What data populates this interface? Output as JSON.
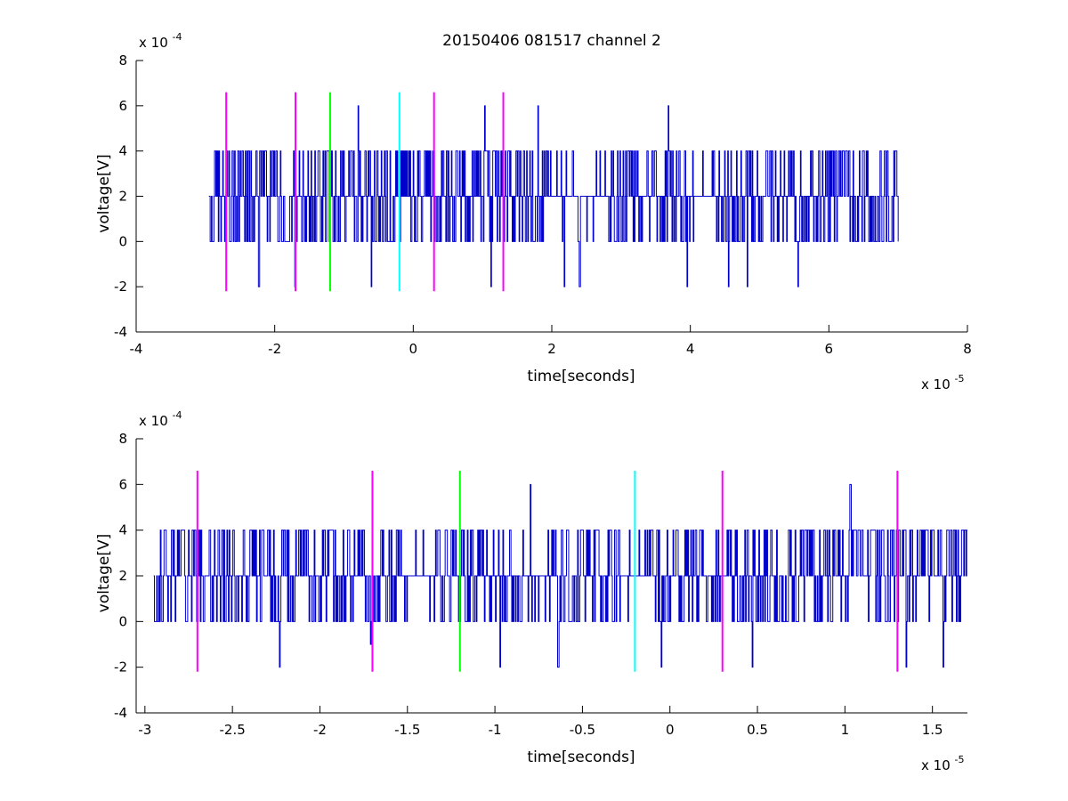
{
  "figure": {
    "title": "20150406 081517 channel 2"
  },
  "chart_data": [
    {
      "type": "line",
      "xlabel": "time[seconds]",
      "ylabel": "voltage[V]",
      "x_exponent_label": "x 10",
      "x_exponent": "-5",
      "y_exponent_label": "x 10",
      "y_exponent": "-4",
      "xlim": [
        -4,
        8
      ],
      "ylim": [
        -4,
        8
      ],
      "xticks": [
        -4,
        -2,
        0,
        2,
        4,
        6,
        8
      ],
      "xtick_labels": [
        "-4",
        "-2",
        "0",
        "2",
        "4",
        "6",
        "8"
      ],
      "yticks": [
        -4,
        -2,
        0,
        2,
        4,
        6,
        8
      ],
      "ytick_labels": [
        "-4",
        "-2",
        "0",
        "2",
        "4",
        "6",
        "8"
      ],
      "grid": false,
      "signal": {
        "color": "#0000cc",
        "x_start": -2.95,
        "x_end": 7.0,
        "levels": [
          -2,
          0,
          2,
          4,
          6
        ],
        "peaks": [
          {
            "x": -0.8,
            "y": 6
          },
          {
            "x": 1.03,
            "y": 6
          },
          {
            "x": 1.8,
            "y": 6
          },
          {
            "x": 3.68,
            "y": 6
          }
        ],
        "dips": [
          {
            "x": -2.23,
            "y": -2
          },
          {
            "x": -1.71,
            "y": -2
          },
          {
            "x": -0.61,
            "y": -2
          },
          {
            "x": 1.12,
            "y": -2
          },
          {
            "x": 2.18,
            "y": -2
          },
          {
            "x": 2.4,
            "y": -2
          },
          {
            "x": 3.95,
            "y": -2
          },
          {
            "x": 4.55,
            "y": -2
          },
          {
            "x": 4.82,
            "y": -2
          },
          {
            "x": 5.55,
            "y": -2
          }
        ],
        "quiet_intervals": [
          [
            2.0,
            2.8
          ],
          [
            3.95,
            4.3
          ]
        ]
      },
      "markers": [
        {
          "x": -2.7,
          "color": "#ff00ff",
          "y_range": [
            -2.2,
            6.6
          ]
        },
        {
          "x": -1.7,
          "color": "#ff00ff",
          "y_range": [
            -2.2,
            6.6
          ]
        },
        {
          "x": -1.2,
          "color": "#00ff00",
          "y_range": [
            -2.2,
            6.6
          ]
        },
        {
          "x": -0.2,
          "color": "#00ffff",
          "y_range": [
            -2.2,
            6.6
          ]
        },
        {
          "x": 0.3,
          "color": "#ff00ff",
          "y_range": [
            -2.2,
            6.6
          ]
        },
        {
          "x": 1.3,
          "color": "#ff00ff",
          "y_range": [
            -2.2,
            6.6
          ]
        }
      ]
    },
    {
      "type": "line",
      "xlabel": "time[seconds]",
      "ylabel": "voltage[V]",
      "x_exponent_label": "x 10",
      "x_exponent": "-5",
      "y_exponent_label": "x 10",
      "y_exponent": "-4",
      "xlim": [
        -3.05,
        1.7
      ],
      "ylim": [
        -4,
        8
      ],
      "xticks": [
        -3,
        -2.5,
        -2,
        -1.5,
        -1,
        -0.5,
        0,
        0.5,
        1,
        1.5
      ],
      "xtick_labels": [
        "-3",
        "-2.5",
        "-2",
        "-1.5",
        "-1",
        "-0.5",
        "0",
        "0.5",
        "1",
        "1.5"
      ],
      "yticks": [
        -4,
        -2,
        0,
        2,
        4,
        6,
        8
      ],
      "ytick_labels": [
        "-4",
        "-2",
        "0",
        "2",
        "4",
        "6",
        "8"
      ],
      "grid": false,
      "signal": {
        "color": "#0000cc",
        "x_start": -2.95,
        "x_end": 1.7,
        "levels": [
          -2,
          0,
          2,
          4,
          6
        ],
        "peaks": [
          {
            "x": -0.8,
            "y": 6
          },
          {
            "x": 1.03,
            "y": 6
          }
        ],
        "dips": [
          {
            "x": -2.23,
            "y": -2
          },
          {
            "x": -1.71,
            "y": -1
          },
          {
            "x": -0.97,
            "y": -2
          },
          {
            "x": -0.64,
            "y": -2
          },
          {
            "x": -0.05,
            "y": -2
          },
          {
            "x": 0.47,
            "y": -2
          },
          {
            "x": 1.35,
            "y": -2
          },
          {
            "x": 1.56,
            "y": -2
          }
        ],
        "quiet_intervals": [
          [
            -1.55,
            -1.35
          ],
          [
            -0.83,
            -0.67
          ],
          [
            -0.28,
            -0.12
          ]
        ]
      },
      "markers": [
        {
          "x": -2.7,
          "color": "#ff00ff",
          "y_range": [
            -2.2,
            6.6
          ]
        },
        {
          "x": -1.7,
          "color": "#ff00ff",
          "y_range": [
            -2.2,
            6.6
          ]
        },
        {
          "x": -1.2,
          "color": "#00ff00",
          "y_range": [
            -2.2,
            6.6
          ]
        },
        {
          "x": -0.2,
          "color": "#00ffff",
          "y_range": [
            -2.2,
            6.6
          ]
        },
        {
          "x": 0.3,
          "color": "#ff00ff",
          "y_range": [
            -2.2,
            6.6
          ]
        },
        {
          "x": 1.3,
          "color": "#ff00ff",
          "y_range": [
            -2.2,
            6.6
          ]
        }
      ]
    }
  ]
}
